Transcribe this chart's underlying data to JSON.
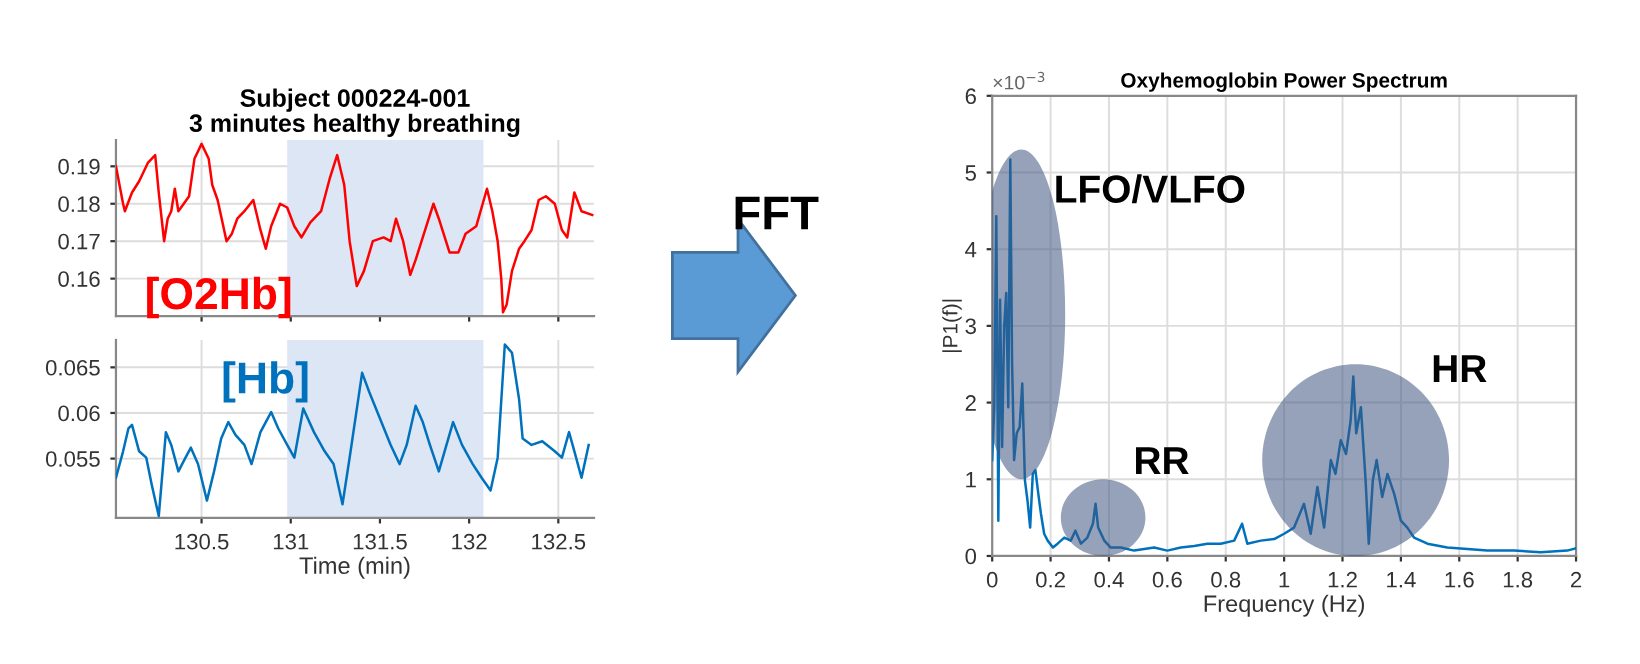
{
  "chart_data": [
    {
      "type": "line",
      "title": "Subject 000224-001",
      "subtitle": "3 minutes healthy breathing",
      "xlim": [
        130.02,
        132.7
      ],
      "xticks": [
        130.5,
        131,
        131.5,
        132,
        132.5
      ],
      "ylim": [
        0.15,
        0.197
      ],
      "yticks": [
        0.16,
        0.17,
        0.18,
        0.19
      ],
      "grid": true,
      "tick_labels": "y",
      "bands": [
        {
          "axis": "x",
          "from": 130.98,
          "to": 132.08,
          "color": "#dce6f4"
        }
      ],
      "series": [
        {
          "name": "[O2Hb]",
          "color": "#ff0000",
          "x": [
            130.02,
            130.06,
            130.07,
            130.11,
            130.15,
            130.17,
            130.2,
            130.24,
            130.26,
            130.29,
            130.31,
            130.33,
            130.35,
            130.37,
            130.43,
            130.46,
            130.5,
            130.54,
            130.56,
            130.59,
            130.64,
            130.67,
            130.7,
            130.74,
            130.79,
            130.83,
            130.86,
            130.89,
            130.94,
            130.98,
            131.02,
            131.06,
            131.11,
            131.17,
            131.22,
            131.26,
            131.3,
            131.33,
            131.37,
            131.41,
            131.46,
            131.52,
            131.56,
            131.59,
            131.63,
            131.67,
            131.7,
            131.76,
            131.8,
            131.83,
            131.89,
            131.94,
            131.98,
            132.04,
            132.1,
            132.13,
            132.16,
            132.18,
            132.19,
            132.21,
            132.24,
            132.28,
            132.31,
            132.35,
            132.39,
            132.43,
            132.48,
            132.52,
            132.55,
            132.59,
            132.63,
            132.69
          ],
          "values": [
            0.19,
            0.18,
            0.178,
            0.183,
            0.186,
            0.188,
            0.191,
            0.193,
            0.183,
            0.17,
            0.176,
            0.178,
            0.184,
            0.178,
            0.182,
            0.192,
            0.196,
            0.192,
            0.185,
            0.181,
            0.17,
            0.172,
            0.176,
            0.178,
            0.181,
            0.173,
            0.168,
            0.174,
            0.18,
            0.179,
            0.174,
            0.171,
            0.175,
            0.178,
            0.187,
            0.193,
            0.185,
            0.17,
            0.158,
            0.162,
            0.17,
            0.171,
            0.17,
            0.176,
            0.17,
            0.161,
            0.165,
            0.174,
            0.18,
            0.176,
            0.167,
            0.167,
            0.172,
            0.174,
            0.184,
            0.178,
            0.17,
            0.16,
            0.151,
            0.153,
            0.162,
            0.168,
            0.17,
            0.173,
            0.181,
            0.182,
            0.18,
            0.173,
            0.171,
            0.183,
            0.178,
            0.177
          ]
        }
      ]
    },
    {
      "type": "line",
      "xlabel": "Time (min)",
      "xlim": [
        130.02,
        132.7
      ],
      "xticks": [
        130.5,
        131,
        131.5,
        132,
        132.5
      ],
      "ylim": [
        0.0485,
        0.068
      ],
      "yticks": [
        0.055,
        0.06,
        0.065
      ],
      "grid": true,
      "bands": [
        {
          "axis": "x",
          "from": 130.98,
          "to": 132.08,
          "color": "#dce6f4"
        }
      ],
      "series": [
        {
          "name": "[Hb]",
          "color": "#0072bd",
          "x": [
            130.02,
            130.06,
            130.09,
            130.11,
            130.15,
            130.19,
            130.22,
            130.26,
            130.3,
            130.33,
            130.37,
            130.41,
            130.44,
            130.48,
            130.53,
            130.57,
            130.61,
            130.65,
            130.69,
            130.74,
            130.78,
            130.83,
            130.89,
            130.93,
            130.98,
            131.02,
            131.07,
            131.13,
            131.19,
            131.24,
            131.29,
            131.33,
            131.4,
            131.44,
            131.5,
            131.56,
            131.61,
            131.65,
            131.7,
            131.74,
            131.78,
            131.83,
            131.91,
            131.96,
            132.02,
            132.07,
            132.12,
            132.16,
            132.2,
            132.24,
            132.28,
            132.3,
            132.35,
            132.41,
            132.48,
            132.52,
            132.56,
            132.59,
            132.63,
            132.67
          ],
          "values": [
            0.0529,
            0.0558,
            0.0583,
            0.0587,
            0.0558,
            0.0551,
            0.0522,
            0.0487,
            0.0579,
            0.0565,
            0.0536,
            0.0551,
            0.0562,
            0.0544,
            0.0504,
            0.0536,
            0.0572,
            0.059,
            0.0576,
            0.0565,
            0.0544,
            0.0579,
            0.0601,
            0.0583,
            0.0565,
            0.0551,
            0.0605,
            0.0579,
            0.0558,
            0.0544,
            0.05,
            0.0551,
            0.0644,
            0.0623,
            0.0594,
            0.0565,
            0.0544,
            0.0565,
            0.0608,
            0.059,
            0.0565,
            0.0536,
            0.059,
            0.0565,
            0.0544,
            0.0529,
            0.0515,
            0.0551,
            0.0675,
            0.0666,
            0.0615,
            0.0572,
            0.0565,
            0.0569,
            0.0558,
            0.0551,
            0.0579,
            0.0558,
            0.0529,
            0.0565
          ]
        }
      ]
    },
    {
      "type": "line",
      "title": "Oxyhemoglobin Power Spectrum",
      "xlabel": "Frequency (Hz)",
      "ylabel": "|P1(f)|",
      "xlim": [
        0,
        2
      ],
      "xticks": [
        0,
        0.2,
        0.4,
        0.6,
        0.8,
        1,
        1.2,
        1.4,
        1.6,
        1.8,
        2
      ],
      "ylim": [
        0,
        6
      ],
      "yticks": [
        0,
        1,
        2,
        3,
        4,
        5,
        6
      ],
      "grid": true,
      "annotations": [
        "×10$^{−3}$",
        "FFT",
        "LFO/VLFO",
        "RR",
        "HR"
      ],
      "series": [
        {
          "color": "#0072bd",
          "x": [
            0,
            0.007,
            0.014,
            0.021,
            0.027,
            0.034,
            0.041,
            0.048,
            0.055,
            0.062,
            0.068,
            0.075,
            0.084,
            0.094,
            0.103,
            0.112,
            0.121,
            0.13,
            0.139,
            0.148,
            0.158,
            0.167,
            0.178,
            0.19,
            0.208,
            0.224,
            0.247,
            0.269,
            0.285,
            0.304,
            0.326,
            0.345,
            0.354,
            0.363,
            0.384,
            0.406,
            0.441,
            0.486,
            0.555,
            0.6,
            0.646,
            0.692,
            0.737,
            0.783,
            0.829,
            0.856,
            0.874,
            0.92,
            0.966,
            1.0,
            1.034,
            1.068,
            1.091,
            1.114,
            1.137,
            1.16,
            1.176,
            1.194,
            1.212,
            1.228,
            1.237,
            1.247,
            1.263,
            1.279,
            1.29,
            1.304,
            1.317,
            1.336,
            1.354,
            1.377,
            1.4,
            1.422,
            1.445,
            1.491,
            1.559,
            1.628,
            1.696,
            1.788,
            1.879,
            1.97,
            2.0
          ],
          "values": [
            1.25,
            1.94,
            4.43,
            0.46,
            3.34,
            1.42,
            2.99,
            3.43,
            1.94,
            5.17,
            2.55,
            1.25,
            1.6,
            1.68,
            2.25,
            0.99,
            0.72,
            0.37,
            1.07,
            1.12,
            0.81,
            0.55,
            0.29,
            0.2,
            0.11,
            0.16,
            0.24,
            0.2,
            0.33,
            0.16,
            0.24,
            0.42,
            0.68,
            0.37,
            0.2,
            0.11,
            0.11,
            0.07,
            0.11,
            0.07,
            0.11,
            0.13,
            0.16,
            0.16,
            0.2,
            0.42,
            0.16,
            0.2,
            0.22,
            0.29,
            0.37,
            0.68,
            0.29,
            0.9,
            0.37,
            1.25,
            1.07,
            1.51,
            1.33,
            1.77,
            2.34,
            1.6,
            1.94,
            0.99,
            0.16,
            0.99,
            1.25,
            0.77,
            1.07,
            0.81,
            0.46,
            0.37,
            0.24,
            0.16,
            0.11,
            0.09,
            0.07,
            0.07,
            0.05,
            0.07,
            0.1
          ]
        }
      ]
    }
  ]
}
